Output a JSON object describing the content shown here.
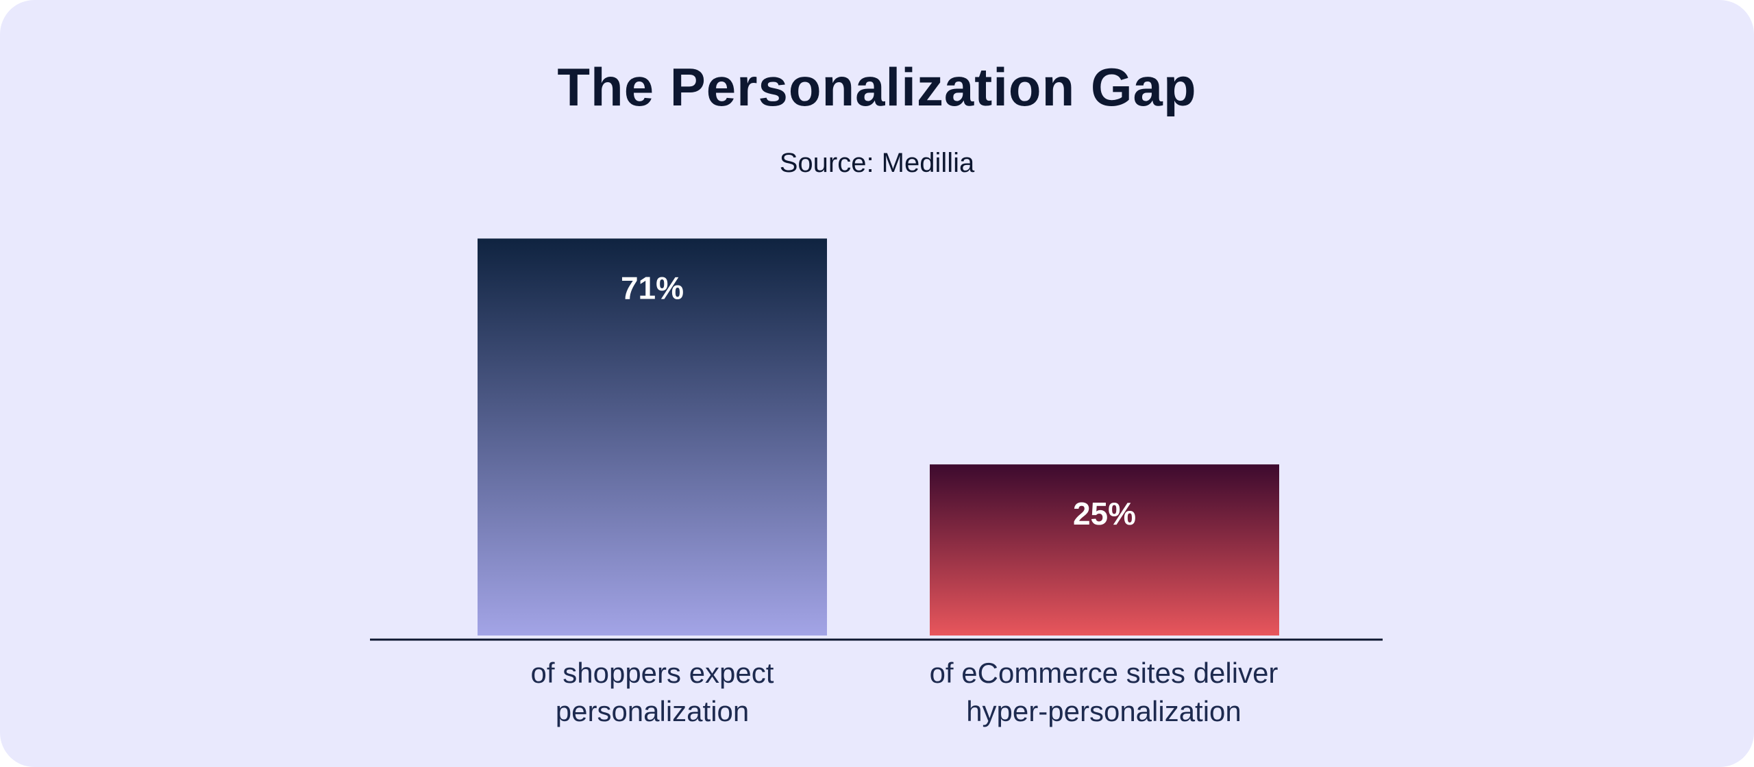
{
  "chart_data": {
    "type": "bar",
    "title": "The Personalization Gap",
    "subtitle": "Source: Medillia",
    "categories": [
      "of shoppers expect personalization",
      "of eCommerce sites deliver hyper-personalization"
    ],
    "category_lines": [
      [
        "of shoppers expect",
        "personalization"
      ],
      [
        "of eCommerce sites deliver",
        "hyper-personalization"
      ]
    ],
    "values": [
      71,
      25
    ],
    "data_labels": [
      "71%",
      "25%"
    ],
    "xlabel": "",
    "ylabel": "",
    "grid": false,
    "colors": [
      [
        "#0f2340",
        "#a3a4e6"
      ],
      [
        "#3d0a2e",
        "#e8565c"
      ]
    ],
    "axis_color": "#0d1730",
    "background": "#e9e9fd"
  }
}
